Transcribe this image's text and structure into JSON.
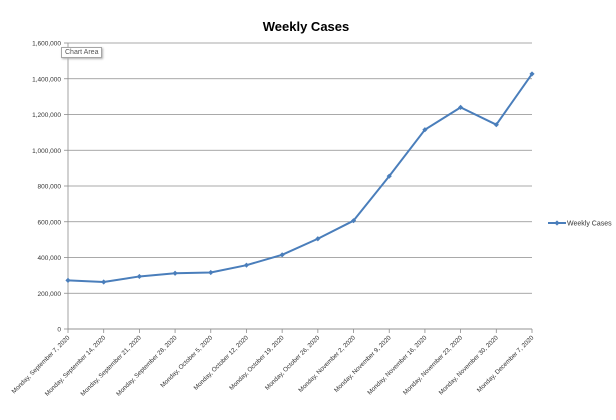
{
  "tooltip": "Chart Area",
  "chart_data": {
    "type": "line",
    "title": "Weekly Cases",
    "xlabel": "",
    "ylabel": "",
    "grid": true,
    "legend": "right",
    "ylim": [
      0,
      1600000
    ],
    "yticks": [
      "0",
      "200,000",
      "400,000",
      "600,000",
      "800,000",
      "1,000,000",
      "1,200,000",
      "1,400,000",
      "1,600,000"
    ],
    "categories": [
      "Monday, September 7, 2020",
      "Monday, September 14, 2020",
      "Monday, September 21, 2020",
      "Monday, September 28, 2020",
      "Monday, October 5, 2020",
      "Monday, October 12, 2020",
      "Monday, October 19, 2020",
      "Monday, October 26, 2020",
      "Monday, November 2, 2020",
      "Monday, November 9, 2020",
      "Monday, November 16, 2020",
      "Monday, November 23, 2020",
      "Monday, November 30, 2020",
      "Monday, December 7, 2020"
    ],
    "series": [
      {
        "name": "Weekly Cases",
        "color": "#4a7ebb",
        "values": [
          272000,
          263000,
          294000,
          312000,
          316000,
          357000,
          415000,
          505000,
          606000,
          855000,
          1115000,
          1240000,
          1143000,
          1427000
        ]
      }
    ]
  }
}
